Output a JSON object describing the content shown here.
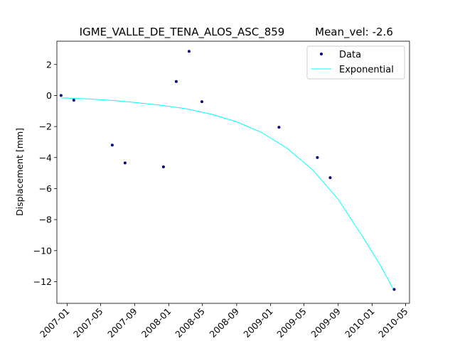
{
  "chart_data": {
    "type": "scatter",
    "title": "IGME_VALLE_DE_TENA_ALOS_ASC_859",
    "subtitle": "Mean_vel: -2.6",
    "xlabel": "",
    "ylabel": "Displacement [mm]",
    "xlim": [
      "2006-11-25",
      "2010-05-15"
    ],
    "ylim": [
      -13.4,
      3.5
    ],
    "x_ticks": [
      "2007-01",
      "2007-05",
      "2007-09",
      "2008-01",
      "2008-05",
      "2008-09",
      "2009-01",
      "2009-05",
      "2009-09",
      "2010-01",
      "2010-05"
    ],
    "y_ticks": [
      2,
      0,
      -2,
      -4,
      -6,
      -8,
      -10,
      -12
    ],
    "legend_position": "top-right",
    "series": [
      {
        "name": "Data",
        "kind": "points",
        "color": "#000080",
        "x": [
          "2006-12-10",
          "2007-01-25",
          "2007-06-12",
          "2007-07-28",
          "2007-12-13",
          "2008-01-28",
          "2008-03-14",
          "2008-04-29",
          "2009-01-31",
          "2009-06-18",
          "2009-08-03",
          "2010-03-21"
        ],
        "y": [
          0.0,
          -0.3,
          -3.2,
          -4.35,
          -4.6,
          0.9,
          2.85,
          -0.4,
          -2.05,
          -4.0,
          -5.3,
          -12.5
        ]
      },
      {
        "name": "Exponential",
        "kind": "line",
        "color": "#00ffff",
        "x": [
          "2006-12-10",
          "2007-03-20",
          "2007-06-12",
          "2007-09-01",
          "2007-12-01",
          "2008-03-01",
          "2008-06-01",
          "2008-09-01",
          "2008-12-01",
          "2009-03-01",
          "2009-06-01",
          "2009-09-01",
          "2009-12-01",
          "2010-02-01",
          "2010-03-21"
        ],
        "y": [
          -0.15,
          -0.22,
          -0.32,
          -0.45,
          -0.62,
          -0.85,
          -1.2,
          -1.7,
          -2.4,
          -3.4,
          -4.8,
          -6.7,
          -9.2,
          -11.0,
          -12.6
        ]
      }
    ]
  }
}
